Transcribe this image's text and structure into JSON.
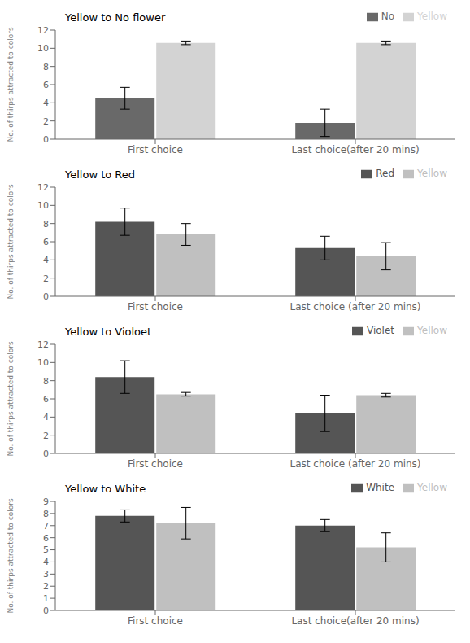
{
  "chart_data": [
    {
      "type": "bar",
      "title": "Yellow to No flower",
      "ylabel": "No. of thirps attracted to colors",
      "categories": [
        "First choice",
        "Last choice(after 20 mins)"
      ],
      "series": [
        {
          "name": "No",
          "color": "#696969",
          "values": [
            4.5,
            1.8
          ],
          "errors": [
            1.2,
            1.5
          ]
        },
        {
          "name": "Yellow",
          "color": "#d3d3d3",
          "values": [
            10.6,
            10.6
          ],
          "errors": [
            0.2,
            0.2
          ]
        }
      ],
      "ylim": [
        0,
        12
      ],
      "yticks": [
        0,
        2,
        4,
        6,
        8,
        10,
        12
      ],
      "grid": false,
      "legend": "upper right"
    },
    {
      "type": "bar",
      "title": "Yellow to Red",
      "ylabel": "No. of thirps attracted to colors",
      "categories": [
        "First choice",
        "Last choice (after 20 mins)"
      ],
      "series": [
        {
          "name": "Red",
          "color": "#555555",
          "values": [
            8.2,
            5.3
          ],
          "errors": [
            1.5,
            1.3
          ]
        },
        {
          "name": "Yellow",
          "color": "#c0c0c0",
          "values": [
            6.8,
            4.4
          ],
          "errors": [
            1.2,
            1.5
          ]
        }
      ],
      "ylim": [
        0,
        12
      ],
      "yticks": [
        0,
        2,
        4,
        6,
        8,
        10,
        12
      ],
      "grid": false,
      "legend": "upper right"
    },
    {
      "type": "bar",
      "title": "Yellow to Violoet",
      "ylabel": "No. of thirps attracted to colors",
      "categories": [
        "First choice",
        "Last choice (after 20 mins)"
      ],
      "series": [
        {
          "name": "Violet",
          "color": "#555555",
          "values": [
            8.4,
            4.4
          ],
          "errors": [
            1.8,
            2.0
          ]
        },
        {
          "name": "Yellow",
          "color": "#c0c0c0",
          "values": [
            6.5,
            6.4
          ],
          "errors": [
            0.2,
            0.2
          ]
        }
      ],
      "ylim": [
        0,
        12
      ],
      "yticks": [
        0,
        2,
        4,
        6,
        8,
        10,
        12
      ],
      "grid": false,
      "legend": "upper right"
    },
    {
      "type": "bar",
      "title": "Yellow to White",
      "ylabel": "No. of thirps attracted to colors",
      "categories": [
        "First choice",
        "Last choice(after 20 mins)"
      ],
      "series": [
        {
          "name": "White",
          "color": "#555555",
          "values": [
            7.8,
            7.0
          ],
          "errors": [
            0.5,
            0.5
          ]
        },
        {
          "name": "Yellow",
          "color": "#c0c0c0",
          "values": [
            7.2,
            5.2
          ],
          "errors": [
            1.3,
            1.2
          ]
        }
      ],
      "ylim": [
        0,
        9
      ],
      "yticks": [
        0,
        1,
        2,
        3,
        4,
        5,
        6,
        7,
        8,
        9
      ],
      "grid": false,
      "legend": "upper right"
    }
  ]
}
